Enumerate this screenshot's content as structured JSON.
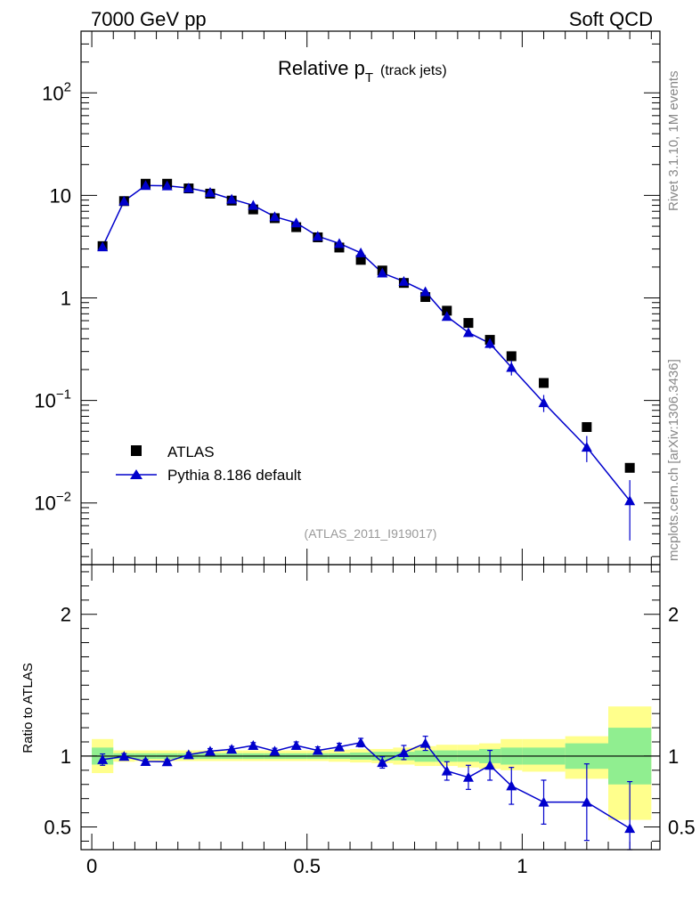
{
  "header": {
    "left": "7000 GeV pp",
    "right": "Soft QCD"
  },
  "side_labels": {
    "rivet": "Rivet 3.1.10,  1M events",
    "mcplots": "mcplots.cern.ch [arXiv:1306.3436]"
  },
  "chart_data": [
    {
      "type": "scatter",
      "title": "Relative p",
      "title_subscript": "T",
      "title_suffix": "(track jets)",
      "analysis_label": "(ATLAS_2011_I919017)",
      "yscale": "log",
      "ylim": [
        0.0025,
        400
      ],
      "xlim": [
        -0.025,
        1.32
      ],
      "yticks": [
        {
          "value": 0.01,
          "base": "10",
          "exp": "−2"
        },
        {
          "value": 0.1,
          "base": "10",
          "exp": "−1"
        },
        {
          "value": 1,
          "label": "1"
        },
        {
          "value": 10,
          "label": "10"
        },
        {
          "value": 100,
          "base": "10",
          "exp": "2"
        }
      ],
      "legend": {
        "position": "lower-left",
        "entries": [
          "ATLAS",
          "Pythia 8.186 default"
        ]
      },
      "colors": {
        "data": "#000000",
        "mc": "#0000cc"
      },
      "series": [
        {
          "name": "ATLAS",
          "marker": "square",
          "x": [
            0.025,
            0.075,
            0.125,
            0.175,
            0.225,
            0.275,
            0.325,
            0.375,
            0.425,
            0.475,
            0.525,
            0.575,
            0.625,
            0.675,
            0.725,
            0.775,
            0.825,
            0.875,
            0.925,
            0.975,
            1.05,
            1.15,
            1.25
          ],
          "y": [
            3.2,
            8.8,
            13.0,
            13.0,
            11.7,
            10.4,
            8.9,
            7.3,
            6.0,
            4.9,
            3.9,
            3.1,
            2.35,
            1.85,
            1.4,
            1.02,
            0.75,
            0.57,
            0.39,
            0.27,
            0.148,
            0.055,
            0.022
          ]
        },
        {
          "name": "Pythia 8.186 default",
          "marker": "triangle",
          "x": [
            0.025,
            0.075,
            0.125,
            0.175,
            0.225,
            0.275,
            0.325,
            0.375,
            0.425,
            0.475,
            0.525,
            0.575,
            0.625,
            0.675,
            0.725,
            0.775,
            0.825,
            0.875,
            0.925,
            0.975,
            1.05,
            1.15,
            1.25
          ],
          "y": [
            3.15,
            8.8,
            12.5,
            12.4,
            11.8,
            10.7,
            9.2,
            8.0,
            6.2,
            5.4,
            4.0,
            3.4,
            2.75,
            1.75,
            1.45,
            1.15,
            0.66,
            0.46,
            0.36,
            0.21,
            0.095,
            0.035,
            0.0105
          ],
          "yerr": [
            0.08,
            0.15,
            0.2,
            0.2,
            0.2,
            0.18,
            0.15,
            0.13,
            0.11,
            0.1,
            0.08,
            0.07,
            0.06,
            0.05,
            0.05,
            0.05,
            0.05,
            0.035,
            0.04,
            0.035,
            0.018,
            0.01,
            0.0062
          ]
        }
      ]
    },
    {
      "type": "scatter",
      "ylabel": "Ratio to ATLAS",
      "xlim": [
        -0.025,
        1.32
      ],
      "ylim": [
        0.34,
        2.35
      ],
      "xticks": [
        {
          "value": 0,
          "label": "0"
        },
        {
          "value": 0.5,
          "label": "0.5"
        },
        {
          "value": 1,
          "label": "1"
        }
      ],
      "yticks": [
        {
          "value": 0.5,
          "label": "0.5"
        },
        {
          "value": 1,
          "label": "1"
        },
        {
          "value": 2,
          "label": "2"
        }
      ],
      "colors": {
        "band_outer": "#ffff8c",
        "band_inner": "#90ee90",
        "mc": "#0000cc"
      },
      "bands": {
        "x_edges": [
          0,
          0.05,
          0.1,
          0.15,
          0.2,
          0.25,
          0.3,
          0.35,
          0.4,
          0.45,
          0.5,
          0.55,
          0.6,
          0.65,
          0.7,
          0.75,
          0.8,
          0.85,
          0.9,
          0.95,
          1.0,
          1.1,
          1.2,
          1.3
        ],
        "outer_lo": [
          0.88,
          0.96,
          0.965,
          0.965,
          0.965,
          0.965,
          0.965,
          0.965,
          0.965,
          0.965,
          0.965,
          0.96,
          0.955,
          0.95,
          0.94,
          0.93,
          0.93,
          0.92,
          0.91,
          0.9,
          0.89,
          0.84,
          0.55
        ],
        "outer_hi": [
          1.12,
          1.04,
          1.04,
          1.04,
          1.04,
          1.04,
          1.04,
          1.04,
          1.04,
          1.04,
          1.04,
          1.045,
          1.05,
          1.05,
          1.06,
          1.07,
          1.08,
          1.08,
          1.09,
          1.12,
          1.12,
          1.14,
          1.35
        ],
        "inner_lo": [
          0.94,
          0.98,
          0.98,
          0.98,
          0.98,
          0.98,
          0.98,
          0.98,
          0.98,
          0.98,
          0.98,
          0.98,
          0.975,
          0.97,
          0.97,
          0.96,
          0.96,
          0.96,
          0.95,
          0.94,
          0.94,
          0.91,
          0.8
        ],
        "inner_hi": [
          1.06,
          1.02,
          1.02,
          1.02,
          1.02,
          1.02,
          1.02,
          1.02,
          1.02,
          1.02,
          1.02,
          1.02,
          1.025,
          1.03,
          1.03,
          1.04,
          1.04,
          1.04,
          1.05,
          1.06,
          1.06,
          1.09,
          1.2
        ]
      },
      "series": [
        {
          "name": "Pythia 8.186 default",
          "marker": "triangle",
          "x": [
            0.025,
            0.075,
            0.125,
            0.175,
            0.225,
            0.275,
            0.325,
            0.375,
            0.425,
            0.475,
            0.525,
            0.575,
            0.625,
            0.675,
            0.725,
            0.775,
            0.825,
            0.875,
            0.925,
            0.975,
            1.05,
            1.15,
            1.25
          ],
          "y": [
            0.975,
            0.998,
            0.962,
            0.96,
            1.01,
            1.035,
            1.048,
            1.075,
            1.035,
            1.075,
            1.04,
            1.065,
            1.095,
            0.955,
            1.025,
            1.09,
            0.895,
            0.85,
            0.935,
            0.79,
            0.675,
            0.675,
            0.49
          ],
          "yerr": [
            0.04,
            0.02,
            0.015,
            0.015,
            0.015,
            0.018,
            0.02,
            0.02,
            0.02,
            0.025,
            0.025,
            0.025,
            0.03,
            0.04,
            0.05,
            0.05,
            0.065,
            0.085,
            0.105,
            0.13,
            0.155,
            0.27,
            0.33
          ]
        }
      ]
    }
  ]
}
